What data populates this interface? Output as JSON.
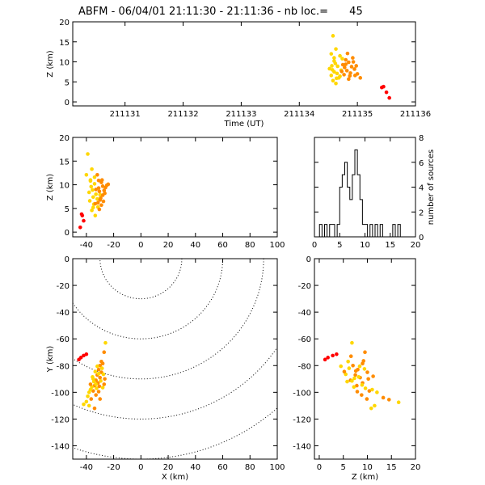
{
  "title_prefix": "ABFM - 06/04/01 21:11:30 - 21:11:36 - nb loc.=",
  "title_count": "45",
  "colors": {
    "early": "#ff0000",
    "mid": "#ff8c00",
    "late": "#ffd700"
  },
  "chart_data": [
    {
      "id": "time-height",
      "type": "scatter",
      "xlabel": "Time (UT)",
      "ylabel": "Z (km)",
      "xlim": [
        211130.1,
        211136
      ],
      "ylim": [
        -1,
        20
      ],
      "xticks": [
        211131,
        211132,
        211133,
        211134,
        211135,
        211136
      ],
      "yticks": [
        0,
        5,
        10,
        15,
        20
      ],
      "points": [
        {
          "x": 211135.45,
          "y": 3.8,
          "c": "early"
        },
        {
          "x": 211135.5,
          "y": 2.4,
          "c": "early"
        },
        {
          "x": 211135.55,
          "y": 1.0,
          "c": "early"
        },
        {
          "x": 211135.42,
          "y": 3.6,
          "c": "early"
        },
        {
          "x": 211134.58,
          "y": 16.5,
          "c": "late"
        },
        {
          "x": 211134.63,
          "y": 13.2,
          "c": "late"
        },
        {
          "x": 211134.55,
          "y": 12.0,
          "c": "late"
        },
        {
          "x": 211134.6,
          "y": 11.0,
          "c": "late"
        },
        {
          "x": 211134.7,
          "y": 11.5,
          "c": "late"
        },
        {
          "x": 211134.62,
          "y": 9.6,
          "c": "late"
        },
        {
          "x": 211134.52,
          "y": 8.3,
          "c": "late"
        },
        {
          "x": 211134.57,
          "y": 8.0,
          "c": "late"
        },
        {
          "x": 211134.6,
          "y": 7.5,
          "c": "late"
        },
        {
          "x": 211134.65,
          "y": 7.1,
          "c": "late"
        },
        {
          "x": 211134.55,
          "y": 6.6,
          "c": "late"
        },
        {
          "x": 211134.68,
          "y": 6.0,
          "c": "late"
        },
        {
          "x": 211134.58,
          "y": 5.3,
          "c": "late"
        },
        {
          "x": 211134.63,
          "y": 4.6,
          "c": "late"
        },
        {
          "x": 211134.72,
          "y": 7.9,
          "c": "late"
        },
        {
          "x": 211134.7,
          "y": 6.4,
          "c": "late"
        },
        {
          "x": 211134.75,
          "y": 9.3,
          "c": "mid"
        },
        {
          "x": 211134.8,
          "y": 10.5,
          "c": "mid"
        },
        {
          "x": 211134.78,
          "y": 8.6,
          "c": "mid"
        },
        {
          "x": 211134.85,
          "y": 9.9,
          "c": "mid"
        },
        {
          "x": 211134.82,
          "y": 7.8,
          "c": "mid"
        },
        {
          "x": 211134.9,
          "y": 8.8,
          "c": "mid"
        },
        {
          "x": 211134.88,
          "y": 7.2,
          "c": "mid"
        },
        {
          "x": 211134.95,
          "y": 8.2,
          "c": "mid"
        },
        {
          "x": 211134.92,
          "y": 11.0,
          "c": "mid"
        },
        {
          "x": 211135.0,
          "y": 7.0,
          "c": "mid"
        },
        {
          "x": 211135.05,
          "y": 6.0,
          "c": "mid"
        },
        {
          "x": 211134.98,
          "y": 9.0,
          "c": "mid"
        },
        {
          "x": 211134.87,
          "y": 6.5,
          "c": "mid"
        },
        {
          "x": 211134.77,
          "y": 6.8,
          "c": "mid"
        },
        {
          "x": 211134.83,
          "y": 12.1,
          "c": "mid"
        },
        {
          "x": 211134.73,
          "y": 7.6,
          "c": "mid"
        },
        {
          "x": 211134.66,
          "y": 8.9,
          "c": "late"
        },
        {
          "x": 211134.6,
          "y": 10.2,
          "c": "late"
        },
        {
          "x": 211134.93,
          "y": 10.0,
          "c": "mid"
        },
        {
          "x": 211134.85,
          "y": 5.7,
          "c": "mid"
        },
        {
          "x": 211134.8,
          "y": 9.4,
          "c": "mid"
        },
        {
          "x": 211134.74,
          "y": 10.8,
          "c": "late"
        },
        {
          "x": 211134.56,
          "y": 9.0,
          "c": "late"
        },
        {
          "x": 211134.64,
          "y": 5.9,
          "c": "late"
        },
        {
          "x": 211134.96,
          "y": 6.6,
          "c": "mid"
        }
      ]
    },
    {
      "id": "x-height",
      "type": "scatter",
      "xlabel": "",
      "ylabel": "Z (km)",
      "xlim": [
        -50,
        100
      ],
      "ylim": [
        -1,
        20
      ],
      "xticks": [
        -40,
        -20,
        0,
        20,
        40,
        60,
        80,
        100
      ],
      "yticks": [
        0,
        5,
        10,
        15,
        20
      ],
      "points": [
        {
          "x": -43.5,
          "y": 3.8,
          "c": "early"
        },
        {
          "x": -42.0,
          "y": 2.4,
          "c": "early"
        },
        {
          "x": -44.5,
          "y": 1.0,
          "c": "early"
        },
        {
          "x": -43.0,
          "y": 3.5,
          "c": "early"
        },
        {
          "x": -39.0,
          "y": 16.5,
          "c": "late"
        },
        {
          "x": -36.0,
          "y": 13.3,
          "c": "late"
        },
        {
          "x": -40.0,
          "y": 12.1,
          "c": "late"
        },
        {
          "x": -37.0,
          "y": 11.0,
          "c": "late"
        },
        {
          "x": -34.0,
          "y": 11.6,
          "c": "late"
        },
        {
          "x": -36.5,
          "y": 9.6,
          "c": "late"
        },
        {
          "x": -38.0,
          "y": 8.4,
          "c": "late"
        },
        {
          "x": -33.0,
          "y": 8.0,
          "c": "late"
        },
        {
          "x": -35.0,
          "y": 7.4,
          "c": "late"
        },
        {
          "x": -32.0,
          "y": 7.0,
          "c": "late"
        },
        {
          "x": -37.5,
          "y": 6.6,
          "c": "late"
        },
        {
          "x": -34.5,
          "y": 5.9,
          "c": "late"
        },
        {
          "x": -31.5,
          "y": 5.3,
          "c": "late"
        },
        {
          "x": -33.5,
          "y": 3.5,
          "c": "late"
        },
        {
          "x": -30.0,
          "y": 7.9,
          "c": "late"
        },
        {
          "x": -36.0,
          "y": 4.6,
          "c": "late"
        },
        {
          "x": -31.0,
          "y": 9.3,
          "c": "mid"
        },
        {
          "x": -29.0,
          "y": 10.5,
          "c": "mid"
        },
        {
          "x": -30.5,
          "y": 8.6,
          "c": "mid"
        },
        {
          "x": -25.0,
          "y": 9.9,
          "c": "mid"
        },
        {
          "x": -28.0,
          "y": 7.8,
          "c": "mid"
        },
        {
          "x": -27.0,
          "y": 8.8,
          "c": "mid"
        },
        {
          "x": -29.5,
          "y": 7.2,
          "c": "mid"
        },
        {
          "x": -26.5,
          "y": 8.2,
          "c": "mid"
        },
        {
          "x": -28.5,
          "y": 11.0,
          "c": "mid"
        },
        {
          "x": -31.5,
          "y": 6.2,
          "c": "mid"
        },
        {
          "x": -33.0,
          "y": 9.0,
          "c": "mid"
        },
        {
          "x": -27.5,
          "y": 6.5,
          "c": "mid"
        },
        {
          "x": -30.0,
          "y": 6.8,
          "c": "mid"
        },
        {
          "x": -32.0,
          "y": 12.1,
          "c": "mid"
        },
        {
          "x": -24.0,
          "y": 10.1,
          "c": "mid"
        },
        {
          "x": -29.0,
          "y": 5.7,
          "c": "mid"
        },
        {
          "x": -35.5,
          "y": 8.9,
          "c": "late"
        },
        {
          "x": -34.0,
          "y": 10.2,
          "c": "late"
        },
        {
          "x": -26.0,
          "y": 9.4,
          "c": "mid"
        },
        {
          "x": -37.0,
          "y": 10.8,
          "c": "late"
        },
        {
          "x": -28.0,
          "y": 9.7,
          "c": "mid"
        },
        {
          "x": -33.5,
          "y": 6.0,
          "c": "mid"
        },
        {
          "x": -30.5,
          "y": 4.8,
          "c": "mid"
        },
        {
          "x": -35.0,
          "y": 5.2,
          "c": "late"
        },
        {
          "x": -31.0,
          "y": 10.9,
          "c": "mid"
        }
      ]
    },
    {
      "id": "height-histogram",
      "type": "histogram",
      "xlabel": "",
      "ylabel": "number of sources",
      "xlim": [
        0,
        20
      ],
      "ylim": [
        0,
        8
      ],
      "xticks": [
        0,
        5,
        10,
        15,
        20
      ],
      "yticks": [
        0,
        2,
        4,
        6,
        8
      ],
      "bin_width": 0.5,
      "bins_start": [
        1.0,
        1.5,
        2.0,
        2.5,
        3.0,
        3.5,
        4.0,
        4.5,
        5.0,
        5.5,
        6.0,
        6.5,
        7.0,
        7.5,
        8.0,
        8.5,
        9.0,
        9.5,
        10.0,
        10.5,
        11.0,
        11.5,
        12.0,
        12.5,
        13.0,
        13.5,
        14.0,
        14.5,
        15.0,
        15.5,
        16.0,
        16.5
      ],
      "counts": [
        1,
        0,
        1,
        0,
        1,
        1,
        0,
        1,
        4,
        5,
        6,
        4,
        3,
        5,
        7,
        5,
        3,
        1,
        1,
        0,
        1,
        0,
        1,
        0,
        1,
        0,
        0,
        0,
        0,
        1,
        0,
        1
      ]
    },
    {
      "id": "plan-view",
      "type": "scatter",
      "xlabel": "X (km)",
      "ylabel": "Y (km)",
      "xlim": [
        -50,
        100
      ],
      "ylim": [
        -150,
        0
      ],
      "xticks": [
        -40,
        -20,
        0,
        20,
        40,
        60,
        80,
        100
      ],
      "yticks": [
        0,
        -20,
        -40,
        -60,
        -80,
        -100,
        -120,
        -140
      ],
      "range_rings_km": [
        30,
        60,
        90,
        120,
        150
      ],
      "ring_center": [
        0,
        0
      ],
      "points": [
        {
          "x": -44.0,
          "y": -74.0,
          "c": "early"
        },
        {
          "x": -42.0,
          "y": -72.5,
          "c": "early"
        },
        {
          "x": -40.0,
          "y": -71.5,
          "c": "early"
        },
        {
          "x": -45.5,
          "y": -75.5,
          "c": "early"
        },
        {
          "x": -26.0,
          "y": -63.0,
          "c": "late"
        },
        {
          "x": -27.0,
          "y": -70.0,
          "c": "mid"
        },
        {
          "x": -30.0,
          "y": -80.0,
          "c": "mid"
        },
        {
          "x": -28.0,
          "y": -78.5,
          "c": "mid"
        },
        {
          "x": -31.0,
          "y": -83.0,
          "c": "mid"
        },
        {
          "x": -29.0,
          "y": -85.0,
          "c": "mid"
        },
        {
          "x": -32.0,
          "y": -87.0,
          "c": "mid"
        },
        {
          "x": -30.0,
          "y": -89.0,
          "c": "mid"
        },
        {
          "x": -33.0,
          "y": -91.0,
          "c": "mid"
        },
        {
          "x": -31.5,
          "y": -93.0,
          "c": "mid"
        },
        {
          "x": -34.0,
          "y": -95.0,
          "c": "mid"
        },
        {
          "x": -28.5,
          "y": -82.0,
          "c": "late"
        },
        {
          "x": -27.5,
          "y": -86.5,
          "c": "late"
        },
        {
          "x": -33.5,
          "y": -84.5,
          "c": "late"
        },
        {
          "x": -35.5,
          "y": -88.5,
          "c": "late"
        },
        {
          "x": -34.5,
          "y": -92.0,
          "c": "late"
        },
        {
          "x": -36.0,
          "y": -96.0,
          "c": "late"
        },
        {
          "x": -29.5,
          "y": -91.5,
          "c": "late"
        },
        {
          "x": -32.5,
          "y": -97.0,
          "c": "late"
        },
        {
          "x": -35.0,
          "y": -99.0,
          "c": "mid"
        },
        {
          "x": -37.0,
          "y": -98.0,
          "c": "late"
        },
        {
          "x": -38.0,
          "y": -100.0,
          "c": "late"
        },
        {
          "x": -33.0,
          "y": -102.0,
          "c": "mid"
        },
        {
          "x": -31.0,
          "y": -99.5,
          "c": "mid"
        },
        {
          "x": -39.0,
          "y": -103.0,
          "c": "late"
        },
        {
          "x": -36.5,
          "y": -105.0,
          "c": "mid"
        },
        {
          "x": -40.0,
          "y": -107.0,
          "c": "late"
        },
        {
          "x": -42.0,
          "y": -109.0,
          "c": "late"
        },
        {
          "x": -38.0,
          "y": -110.0,
          "c": "late"
        },
        {
          "x": -30.0,
          "y": -105.0,
          "c": "mid"
        },
        {
          "x": -34.0,
          "y": -112.0,
          "c": "mid"
        },
        {
          "x": -27.0,
          "y": -94.0,
          "c": "mid"
        },
        {
          "x": -28.0,
          "y": -96.5,
          "c": "late"
        },
        {
          "x": -26.5,
          "y": -90.0,
          "c": "mid"
        },
        {
          "x": -31.0,
          "y": -86.0,
          "c": "late"
        },
        {
          "x": -32.0,
          "y": -80.5,
          "c": "late"
        },
        {
          "x": -29.0,
          "y": -77.0,
          "c": "mid"
        },
        {
          "x": -35.0,
          "y": -90.0,
          "c": "late"
        },
        {
          "x": -33.0,
          "y": -94.0,
          "c": "late"
        },
        {
          "x": -30.5,
          "y": -95.5,
          "c": "mid"
        },
        {
          "x": -37.0,
          "y": -94.0,
          "c": "mid"
        }
      ]
    },
    {
      "id": "z-y-view",
      "type": "scatter",
      "xlabel": "Z (km)",
      "ylabel": "",
      "xlim": [
        -1,
        20
      ],
      "ylim": [
        -150,
        0
      ],
      "xticks": [
        0,
        5,
        10,
        15,
        20
      ],
      "yticks": [
        0,
        -20,
        -40,
        -60,
        -80,
        -100,
        -120,
        -140
      ],
      "points": [
        {
          "x": 1.8,
          "y": -74.0,
          "c": "early"
        },
        {
          "x": 2.8,
          "y": -72.5,
          "c": "early"
        },
        {
          "x": 3.6,
          "y": -71.5,
          "c": "early"
        },
        {
          "x": 1.2,
          "y": -75.5,
          "c": "early"
        },
        {
          "x": 6.8,
          "y": -63.0,
          "c": "late"
        },
        {
          "x": 9.5,
          "y": -70.0,
          "c": "mid"
        },
        {
          "x": 7.0,
          "y": -80.0,
          "c": "mid"
        },
        {
          "x": 9.0,
          "y": -78.5,
          "c": "mid"
        },
        {
          "x": 8.0,
          "y": -83.0,
          "c": "mid"
        },
        {
          "x": 10.0,
          "y": -85.0,
          "c": "mid"
        },
        {
          "x": 7.5,
          "y": -87.0,
          "c": "mid"
        },
        {
          "x": 8.5,
          "y": -89.0,
          "c": "mid"
        },
        {
          "x": 6.5,
          "y": -91.0,
          "c": "mid"
        },
        {
          "x": 9.0,
          "y": -93.0,
          "c": "mid"
        },
        {
          "x": 7.8,
          "y": -95.0,
          "c": "mid"
        },
        {
          "x": 6.2,
          "y": -82.0,
          "c": "late"
        },
        {
          "x": 5.5,
          "y": -86.5,
          "c": "late"
        },
        {
          "x": 4.5,
          "y": -80.5,
          "c": "late"
        },
        {
          "x": 8.2,
          "y": -88.5,
          "c": "late"
        },
        {
          "x": 5.8,
          "y": -92.0,
          "c": "late"
        },
        {
          "x": 7.2,
          "y": -96.0,
          "c": "late"
        },
        {
          "x": 6.8,
          "y": -91.5,
          "c": "late"
        },
        {
          "x": 9.6,
          "y": -97.0,
          "c": "late"
        },
        {
          "x": 10.4,
          "y": -99.0,
          "c": "mid"
        },
        {
          "x": 11.0,
          "y": -98.0,
          "c": "late"
        },
        {
          "x": 12.0,
          "y": -100.0,
          "c": "late"
        },
        {
          "x": 13.3,
          "y": -104.0,
          "c": "mid"
        },
        {
          "x": 14.5,
          "y": -105.5,
          "c": "mid"
        },
        {
          "x": 11.5,
          "y": -110.0,
          "c": "late"
        },
        {
          "x": 16.5,
          "y": -107.5,
          "c": "late"
        },
        {
          "x": 10.8,
          "y": -112.0,
          "c": "late"
        },
        {
          "x": 8.8,
          "y": -102.0,
          "c": "mid"
        },
        {
          "x": 9.9,
          "y": -105.0,
          "c": "mid"
        },
        {
          "x": 7.6,
          "y": -84.0,
          "c": "mid"
        },
        {
          "x": 8.4,
          "y": -80.5,
          "c": "late"
        },
        {
          "x": 9.2,
          "y": -76.5,
          "c": "mid"
        },
        {
          "x": 6.0,
          "y": -77.0,
          "c": "late"
        },
        {
          "x": 7.3,
          "y": -89.5,
          "c": "late"
        },
        {
          "x": 10.2,
          "y": -90.0,
          "c": "mid"
        },
        {
          "x": 8.9,
          "y": -94.5,
          "c": "late"
        },
        {
          "x": 5.2,
          "y": -84.5,
          "c": "mid"
        },
        {
          "x": 6.6,
          "y": -73.0,
          "c": "mid"
        },
        {
          "x": 11.2,
          "y": -88.0,
          "c": "mid"
        },
        {
          "x": 7.9,
          "y": -99.5,
          "c": "mid"
        },
        {
          "x": 9.4,
          "y": -82.5,
          "c": "late"
        }
      ]
    }
  ]
}
